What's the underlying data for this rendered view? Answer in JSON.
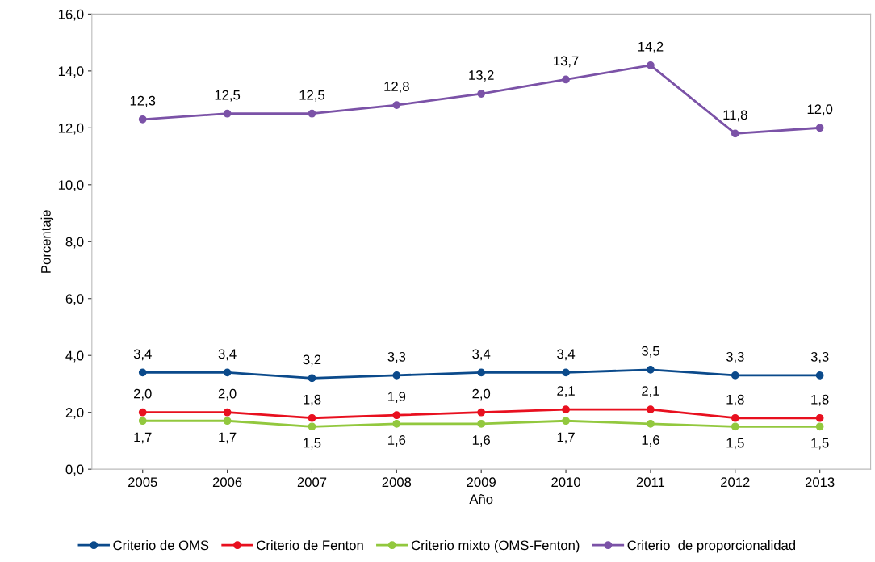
{
  "chart_data": {
    "type": "line",
    "xlabel": "Año",
    "ylabel": "Porcentaje",
    "categories": [
      "2005",
      "2006",
      "2007",
      "2008",
      "2009",
      "2010",
      "2011",
      "2012",
      "2013"
    ],
    "ylim": [
      0,
      16
    ],
    "yticks": [
      {
        "value": 0,
        "label": "0,0"
      },
      {
        "value": 2,
        "label": "2,0"
      },
      {
        "value": 4,
        "label": "4,0"
      },
      {
        "value": 6,
        "label": "6,0"
      },
      {
        "value": 8,
        "label": "8,0"
      },
      {
        "value": 10,
        "label": "10,0"
      },
      {
        "value": 12,
        "label": "12,0"
      },
      {
        "value": 14,
        "label": "14,0"
      },
      {
        "value": 16,
        "label": "16,0"
      }
    ],
    "grid": false,
    "legend": "bottom",
    "marker": "circle",
    "line_style": "solid",
    "series": [
      {
        "name": "Criterio de OMS",
        "color": "#0b4a8b",
        "values": [
          3.4,
          3.4,
          3.2,
          3.3,
          3.4,
          3.4,
          3.5,
          3.3,
          3.3
        ],
        "value_labels": [
          "3,4",
          "3,4",
          "3,2",
          "3,3",
          "3,4",
          "3,4",
          "3,5",
          "3,3",
          "3,3"
        ]
      },
      {
        "name": "Criterio de Fenton",
        "color": "#e8101f",
        "values": [
          2.0,
          2.0,
          1.8,
          1.9,
          2.0,
          2.1,
          2.1,
          1.8,
          1.8
        ],
        "value_labels": [
          "2,0",
          "2,0",
          "1,8",
          "1,9",
          "2,0",
          "2,1",
          "2,1",
          "1,8",
          "1,8"
        ]
      },
      {
        "name": "Criterio mixto (OMS-Fenton)",
        "color": "#92c83e",
        "values": [
          1.7,
          1.7,
          1.5,
          1.6,
          1.6,
          1.7,
          1.6,
          1.5,
          1.5
        ],
        "value_labels": [
          "1,7",
          "1,7",
          "1,5",
          "1,6",
          "1,6",
          "1,7",
          "1,6",
          "1,5",
          "1,5"
        ]
      },
      {
        "name": "Criterio  de proporcionalidad",
        "color": "#7b52a7",
        "values": [
          12.3,
          12.5,
          12.5,
          12.8,
          13.2,
          13.7,
          14.2,
          11.8,
          12.0
        ],
        "value_labels": [
          "12,3",
          "12,5",
          "12,5",
          "12,8",
          "13,2",
          "13,7",
          "14,2",
          "11,8",
          "12,0"
        ]
      }
    ]
  }
}
